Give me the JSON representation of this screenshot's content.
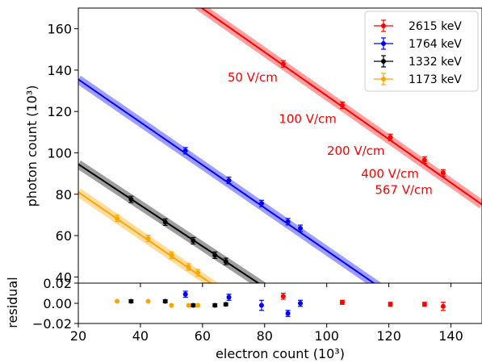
{
  "chart_data": [
    {
      "type": "scatter",
      "xlabel": "",
      "ylabel": "photon count (10³)",
      "xlim": [
        20,
        150
      ],
      "ylim": [
        37,
        170
      ],
      "xticks": [
        "20",
        "40",
        "60",
        "80",
        "100",
        "120",
        "140"
      ],
      "yticks": [
        "40",
        "60",
        "80",
        "100",
        "120",
        "140",
        "160"
      ],
      "legend_position": "top-right",
      "legend": [
        "2615 keV",
        "1764 keV",
        "1332 keV",
        "1173 keV"
      ],
      "series": [
        {
          "name": "2615 keV",
          "color": "#ff0000",
          "x": [
            86.0,
            105.0,
            120.5,
            131.5,
            137.5
          ],
          "y": [
            143.0,
            123.0,
            107.5,
            96.5,
            90.3
          ],
          "fit_line": {
            "x": [
              40.0,
              150.0
            ],
            "y": [
              190.8,
              75.0
            ]
          },
          "point_labels": [
            "50 V/cm",
            "100 V/cm",
            "200 V/cm",
            "400 V/cm",
            "567 V/cm"
          ]
        },
        {
          "name": "1764 keV",
          "color": "#0000ff",
          "x": [
            54.5,
            68.5,
            79.0,
            87.5,
            91.5
          ],
          "y": [
            101.0,
            86.7,
            75.5,
            66.7,
            63.5
          ],
          "fit_line": {
            "x": [
              20.0,
              120.0
            ],
            "y": [
              135.5,
              32.0
            ]
          }
        },
        {
          "name": "1332 keV",
          "color": "#000000",
          "x": [
            37.0,
            48.0,
            57.0,
            64.0,
            67.5
          ],
          "y": [
            77.5,
            66.5,
            57.5,
            50.5,
            47.5
          ],
          "fit_line": {
            "x": [
              20.0,
              80.0
            ],
            "y": [
              94.5,
              35.0
            ]
          }
        },
        {
          "name": "1173 keV",
          "color": "#ffa500",
          "x": [
            32.5,
            42.5,
            50.0,
            55.5,
            58.5
          ],
          "y": [
            68.3,
            58.6,
            50.5,
            44.8,
            42.0
          ],
          "fit_line": {
            "x": [
              20.0,
              66.0
            ],
            "y": [
              81.0,
              33.5
            ]
          }
        }
      ]
    },
    {
      "type": "scatter",
      "xlabel": "electron count (10³)",
      "ylabel": "residual",
      "xlim": [
        20,
        150
      ],
      "ylim": [
        -0.02,
        0.02
      ],
      "xticks": [
        "20",
        "40",
        "60",
        "80",
        "100",
        "120",
        "140"
      ],
      "yticks": [
        "0.02",
        "0.00",
        "−0.02"
      ],
      "series": [
        {
          "name": "2615 keV",
          "color": "#ff0000",
          "x": [
            86.0,
            105.0,
            120.5,
            131.5,
            137.5
          ],
          "y": [
            0.007,
            0.001,
            -0.001,
            -0.001,
            -0.003
          ],
          "err": [
            0.003,
            0.002,
            0.002,
            0.002,
            0.004
          ]
        },
        {
          "name": "1764 keV",
          "color": "#0000ff",
          "x": [
            54.5,
            68.5,
            79.0,
            87.5,
            91.5
          ],
          "y": [
            0.009,
            0.006,
            -0.002,
            -0.01,
            0.0
          ],
          "err": [
            0.003,
            0.003,
            0.005,
            0.003,
            0.003
          ]
        },
        {
          "name": "1332 keV",
          "color": "#000000",
          "x": [
            37.0,
            48.0,
            57.0,
            64.0,
            67.5
          ],
          "y": [
            0.002,
            0.002,
            -0.002,
            -0.002,
            -0.001
          ],
          "err": [
            0.0015,
            0.0015,
            0.0015,
            0.0015,
            0.0015
          ]
        },
        {
          "name": "1173 keV",
          "color": "#ffa500",
          "x": [
            32.5,
            42.5,
            50.0,
            55.5,
            58.5
          ],
          "y": [
            0.002,
            0.002,
            -0.002,
            -0.002,
            -0.002
          ],
          "err": [
            0.0,
            0.0,
            0.0,
            0.0,
            0.0
          ]
        }
      ]
    }
  ]
}
